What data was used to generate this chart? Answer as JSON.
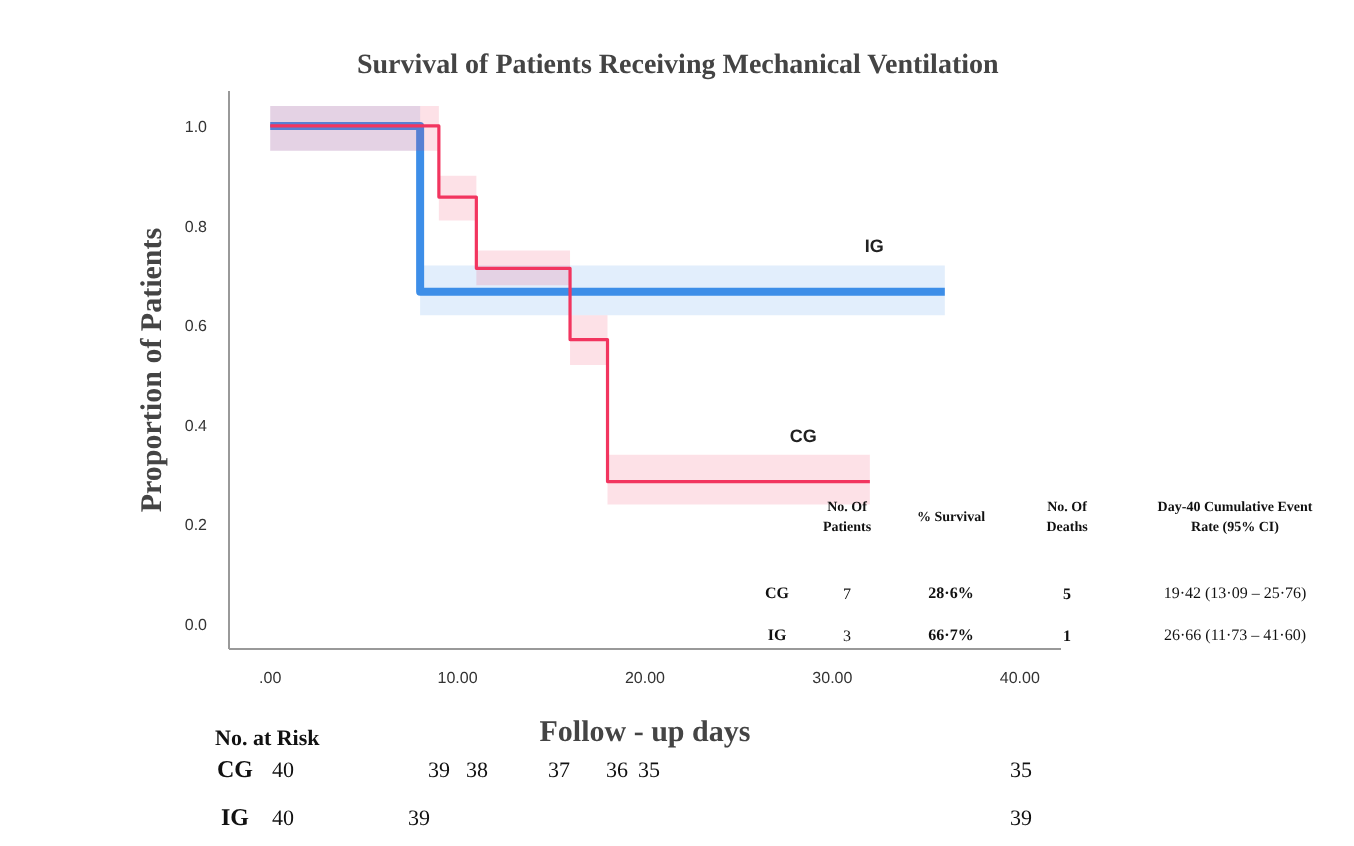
{
  "chart_data": {
    "type": "step",
    "title": "Survival of Patients Receiving Mechanical Ventilation",
    "xlabel": "Follow - up days",
    "ylabel": "Proportion of Patients",
    "xlim": [
      -2.2,
      42.2
    ],
    "ylim": [
      -0.05,
      1.07
    ],
    "xticks": [
      {
        "value": 0,
        "label": ".00"
      },
      {
        "value": 10,
        "label": "10.00"
      },
      {
        "value": 20,
        "label": "20.00"
      },
      {
        "value": 30,
        "label": "30.00"
      },
      {
        "value": 40,
        "label": "40.00"
      }
    ],
    "yticks": [
      {
        "value": 0,
        "label": "0.0"
      },
      {
        "value": 0.2,
        "label": "0.2"
      },
      {
        "value": 0.4,
        "label": "0.4"
      },
      {
        "value": 0.6,
        "label": "0.6"
      },
      {
        "value": 0.8,
        "label": "0.8"
      },
      {
        "value": 1,
        "label": "1.0"
      }
    ],
    "grid": false,
    "legend": false,
    "series": [
      {
        "name": "IG",
        "color": "#3d8ee8",
        "x": [
          0,
          8,
          36
        ],
        "values": [
          1,
          0.667,
          0.667
        ],
        "lower": [
          0.95,
          0.62,
          0.62
        ],
        "upper": [
          1.04,
          0.72,
          0.72
        ]
      },
      {
        "name": "CG",
        "color": "#f2355f",
        "x": [
          0,
          9,
          11,
          16,
          18,
          32
        ],
        "values": [
          1,
          0.857,
          0.714,
          0.571,
          0.286,
          0.286
        ],
        "lower": [
          0.95,
          0.81,
          0.68,
          0.52,
          0.24,
          0.24
        ],
        "upper": [
          1.04,
          0.9,
          0.75,
          0.62,
          0.34,
          0.34
        ]
      }
    ],
    "annotations": [
      "No. Of\nPatients",
      "% Survival",
      "No. Of\nDeaths",
      "Day-40 Cumulative Event\nRate (95% CI)",
      "CG",
      "7",
      "28·6%",
      "5",
      "19·42 (13·09 – 25·76)",
      "IG",
      "3",
      "66·7%",
      "1",
      "26·66 (11·73 – 41·60)",
      "No. at Risk",
      "CG",
      "40",
      "39",
      "38",
      "37",
      "36",
      "35",
      "35",
      "IG",
      "40",
      "39",
      "39"
    ]
  }
}
